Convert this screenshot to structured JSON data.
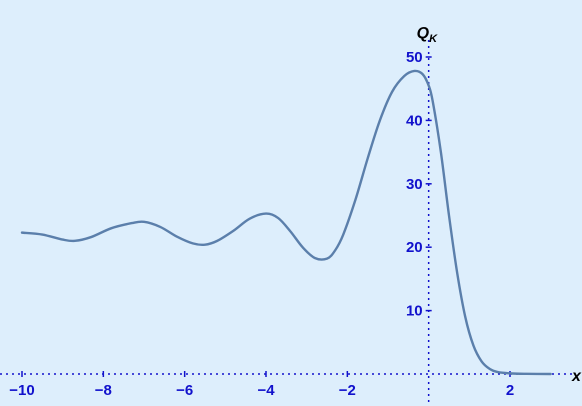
{
  "chart_data": {
    "type": "line",
    "title": "",
    "xlabel": "x",
    "ylabel": "Q",
    "ylabel_subscript": "K",
    "xlim": [
      -10.2,
      3.1
    ],
    "ylim": [
      -1.5,
      52
    ],
    "x_ticks": [
      -10,
      -8,
      -6,
      -4,
      -2,
      2
    ],
    "x_tick_labels": [
      "−10",
      "−8",
      "−6",
      "−4",
      "−2",
      "2"
    ],
    "y_ticks": [
      10,
      20,
      30,
      40,
      50
    ],
    "y_tick_labels": [
      "10",
      "20",
      "30",
      "40",
      "50"
    ],
    "grid": false,
    "series": [
      {
        "name": "",
        "x": [
          -10,
          -9.5,
          -9,
          -8.7,
          -8.3,
          -7.8,
          -7.3,
          -7,
          -6.6,
          -6.2,
          -5.8,
          -5.5,
          -5.2,
          -4.8,
          -4.4,
          -4,
          -3.7,
          -3.4,
          -3.1,
          -2.8,
          -2.5,
          -2.3,
          -2.1,
          -1.8,
          -1.5,
          -1.2,
          -0.9,
          -0.6,
          -0.35,
          -0.15,
          0,
          0.1,
          0.3,
          0.5,
          0.7,
          0.9,
          1.1,
          1.3,
          1.5,
          1.7,
          2,
          2.4,
          3
        ],
        "values": [
          22.3,
          22,
          21.2,
          21,
          21.6,
          23,
          23.8,
          24,
          23.2,
          21.7,
          20.6,
          20.4,
          21,
          22.6,
          24.5,
          25.3,
          24.6,
          22.5,
          20,
          18.3,
          18.2,
          19.5,
          22,
          27.5,
          34,
          40,
          44.5,
          47,
          47.8,
          47.3,
          45.5,
          43,
          35,
          25,
          16,
          9,
          4.5,
          2,
          0.8,
          0.3,
          0.1,
          0.03,
          0
        ]
      }
    ],
    "colors": {
      "background": "#ddeefc",
      "curve": "#5b7fab",
      "axis": "#1111cc"
    }
  }
}
